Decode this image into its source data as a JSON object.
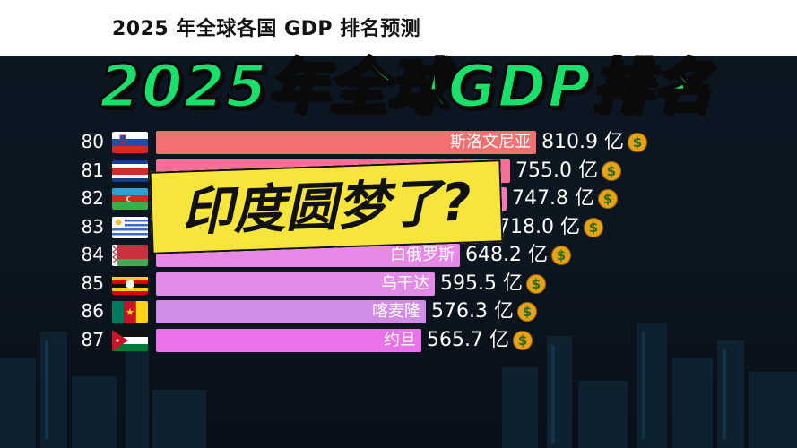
{
  "header": {
    "title": "2025 年全球各国 GDP 排名预测"
  },
  "headline": "2025年全球GDP排名",
  "overlay_text": "印度圆梦了?",
  "chart_data": {
    "type": "bar",
    "unit": "亿",
    "colors": [
      "#f2706f",
      "#f26f96",
      "#f07ab8",
      "#f28ad6",
      "#e787e6",
      "#e38be6",
      "#d08de6",
      "#ea72ea"
    ],
    "rows": [
      {
        "rank": "80",
        "flag": "slovenia",
        "label": "斯洛文尼亚",
        "value": 810.9,
        "value_text": "810.9 亿"
      },
      {
        "rank": "81",
        "flag": "costa-rica",
        "label": "",
        "value": 755.0,
        "value_text": "755.0 亿"
      },
      {
        "rank": "82",
        "flag": "azerbaijan",
        "label": "",
        "value": 747.8,
        "value_text": "747.8 亿"
      },
      {
        "rank": "83",
        "flag": "uruguay",
        "label": "",
        "value": 718.0,
        "value_text": "718.0 亿"
      },
      {
        "rank": "84",
        "flag": "belarus",
        "label": "白俄罗斯",
        "value": 648.2,
        "value_text": "648.2 亿"
      },
      {
        "rank": "85",
        "flag": "uganda",
        "label": "乌干达",
        "value": 595.5,
        "value_text": "595.5 亿"
      },
      {
        "rank": "86",
        "flag": "cameroon",
        "label": "喀麦隆",
        "value": 576.3,
        "value_text": "576.3 亿"
      },
      {
        "rank": "87",
        "flag": "jordan",
        "label": "约旦",
        "value": 565.7,
        "value_text": "565.7 亿"
      }
    ]
  }
}
